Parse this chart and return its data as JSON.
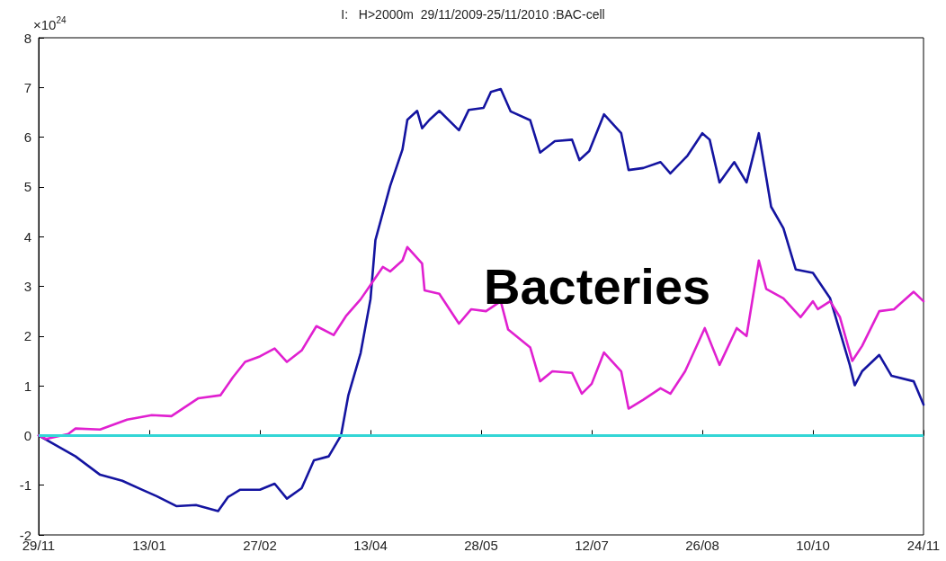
{
  "chart_data": {
    "type": "line",
    "title": "I:   H>2000m  29/11/2009-25/11/2010 :BAC-cell",
    "ylabel": "×10$^{24}$",
    "annotations": [
      "Bacteries"
    ],
    "xlim": [
      "2009-11-29",
      "2010-11-24"
    ],
    "xticks": [
      {
        "value": "2009-11-29",
        "label": "29/11"
      },
      {
        "value": "2010-01-13",
        "label": "13/01"
      },
      {
        "value": "2010-02-27",
        "label": "27/02"
      },
      {
        "value": "2010-04-13",
        "label": "13/04"
      },
      {
        "value": "2010-05-28",
        "label": "28/05"
      },
      {
        "value": "2010-07-12",
        "label": "12/07"
      },
      {
        "value": "2010-08-26",
        "label": "26/08"
      },
      {
        "value": "2010-10-10",
        "label": "10/10"
      },
      {
        "value": "2010-11-24",
        "label": "24/11"
      }
    ],
    "ylim": [
      -2,
      8
    ],
    "yticks": [
      -2,
      -1,
      0,
      1,
      2,
      3,
      4,
      5,
      6,
      7,
      8
    ],
    "marker": "none",
    "line_style": "solid",
    "ref_lines": [
      {
        "axis": "y",
        "value": 0,
        "label": null,
        "color": "#33d6d6"
      }
    ],
    "series": [
      {
        "color": "#1414a0",
        "x": [
          "2009-11-29",
          "2009-12-14",
          "2009-12-24",
          "2010-01-02",
          "2010-01-10",
          "2010-01-16",
          "2010-01-24",
          "2010-02-01",
          "2010-02-10",
          "2010-02-14",
          "2010-02-19",
          "2010-02-27",
          "2010-03-05",
          "2010-03-10",
          "2010-03-16",
          "2010-03-21",
          "2010-03-27",
          "2010-04-01",
          "2010-04-04",
          "2010-04-09",
          "2010-04-13",
          "2010-04-15",
          "2010-04-21",
          "2010-04-26",
          "2010-04-28",
          "2010-05-02",
          "2010-05-04",
          "2010-05-07",
          "2010-05-11",
          "2010-05-19",
          "2010-05-23",
          "2010-05-29",
          "2010-06-01",
          "2010-06-05",
          "2010-06-09",
          "2010-06-17",
          "2010-06-21",
          "2010-06-27",
          "2010-07-04",
          "2010-07-07",
          "2010-07-11",
          "2010-07-17",
          "2010-07-24",
          "2010-07-27",
          "2010-08-02",
          "2010-08-09",
          "2010-08-13",
          "2010-08-20",
          "2010-08-26",
          "2010-08-29",
          "2010-09-02",
          "2010-09-08",
          "2010-09-13",
          "2010-09-18",
          "2010-09-23",
          "2010-09-28",
          "2010-10-03",
          "2010-10-10",
          "2010-10-17",
          "2010-10-25",
          "2010-10-27",
          "2010-10-30",
          "2010-11-06",
          "2010-11-11",
          "2010-11-20",
          "2010-11-24"
        ],
        "values": [
          0,
          -0.42,
          -0.79,
          -0.91,
          -1.09,
          -1.22,
          -1.42,
          -1.4,
          -1.52,
          -1.24,
          -1.09,
          -1.09,
          -0.97,
          -1.27,
          -1.06,
          -0.5,
          -0.42,
          0,
          0.81,
          1.66,
          2.74,
          3.93,
          5.02,
          5.75,
          6.35,
          6.53,
          6.18,
          6.35,
          6.53,
          6.14,
          6.55,
          6.59,
          6.91,
          6.97,
          6.52,
          6.34,
          5.69,
          5.92,
          5.95,
          5.54,
          5.72,
          6.46,
          6.08,
          5.34,
          5.38,
          5.5,
          5.27,
          5.63,
          6.08,
          5.95,
          5.09,
          5.5,
          5.09,
          6.08,
          4.6,
          4.17,
          3.34,
          3.27,
          2.76,
          1.42,
          1.01,
          1.29,
          1.62,
          1.2,
          1.09,
          0.62
        ]
      },
      {
        "color": "#e020d0",
        "x": [
          "2009-11-29",
          "2009-12-02",
          "2009-12-11",
          "2009-12-14",
          "2009-12-24",
          "2010-01-04",
          "2010-01-14",
          "2010-01-22",
          "2010-02-02",
          "2010-02-11",
          "2010-02-16",
          "2010-02-21",
          "2010-02-27",
          "2010-03-05",
          "2010-03-10",
          "2010-03-16",
          "2010-03-22",
          "2010-03-29",
          "2010-04-03",
          "2010-04-09",
          "2010-04-14",
          "2010-04-18",
          "2010-04-21",
          "2010-04-26",
          "2010-04-28",
          "2010-05-04",
          "2010-05-05",
          "2010-05-11",
          "2010-05-19",
          "2010-05-24",
          "2010-05-30",
          "2010-06-05",
          "2010-06-08",
          "2010-06-17",
          "2010-06-21",
          "2010-06-26",
          "2010-07-04",
          "2010-07-08",
          "2010-07-12",
          "2010-07-17",
          "2010-07-24",
          "2010-07-27",
          "2010-08-02",
          "2010-08-09",
          "2010-08-13",
          "2010-08-19",
          "2010-08-27",
          "2010-09-02",
          "2010-09-09",
          "2010-09-13",
          "2010-09-18",
          "2010-09-21",
          "2010-09-28",
          "2010-10-05",
          "2010-10-10",
          "2010-10-12",
          "2010-10-17",
          "2010-10-21",
          "2010-10-26",
          "2010-10-30",
          "2010-11-06",
          "2010-11-12",
          "2010-11-20",
          "2010-11-24"
        ],
        "values": [
          0,
          -0.07,
          0.03,
          0.14,
          0.12,
          0.32,
          0.41,
          0.39,
          0.75,
          0.81,
          1.17,
          1.48,
          1.59,
          1.75,
          1.48,
          1.71,
          2.2,
          2.02,
          2.4,
          2.74,
          3.1,
          3.39,
          3.3,
          3.52,
          3.79,
          3.46,
          2.92,
          2.85,
          2.25,
          2.54,
          2.5,
          2.7,
          2.13,
          1.77,
          1.09,
          1.29,
          1.26,
          0.84,
          1.04,
          1.67,
          1.29,
          0.54,
          0.72,
          0.95,
          0.84,
          1.29,
          2.16,
          1.42,
          2.16,
          2.0,
          3.52,
          2.95,
          2.76,
          2.38,
          2.7,
          2.54,
          2.7,
          2.38,
          1.5,
          1.8,
          2.5,
          2.54,
          2.89,
          2.7
        ]
      }
    ]
  }
}
